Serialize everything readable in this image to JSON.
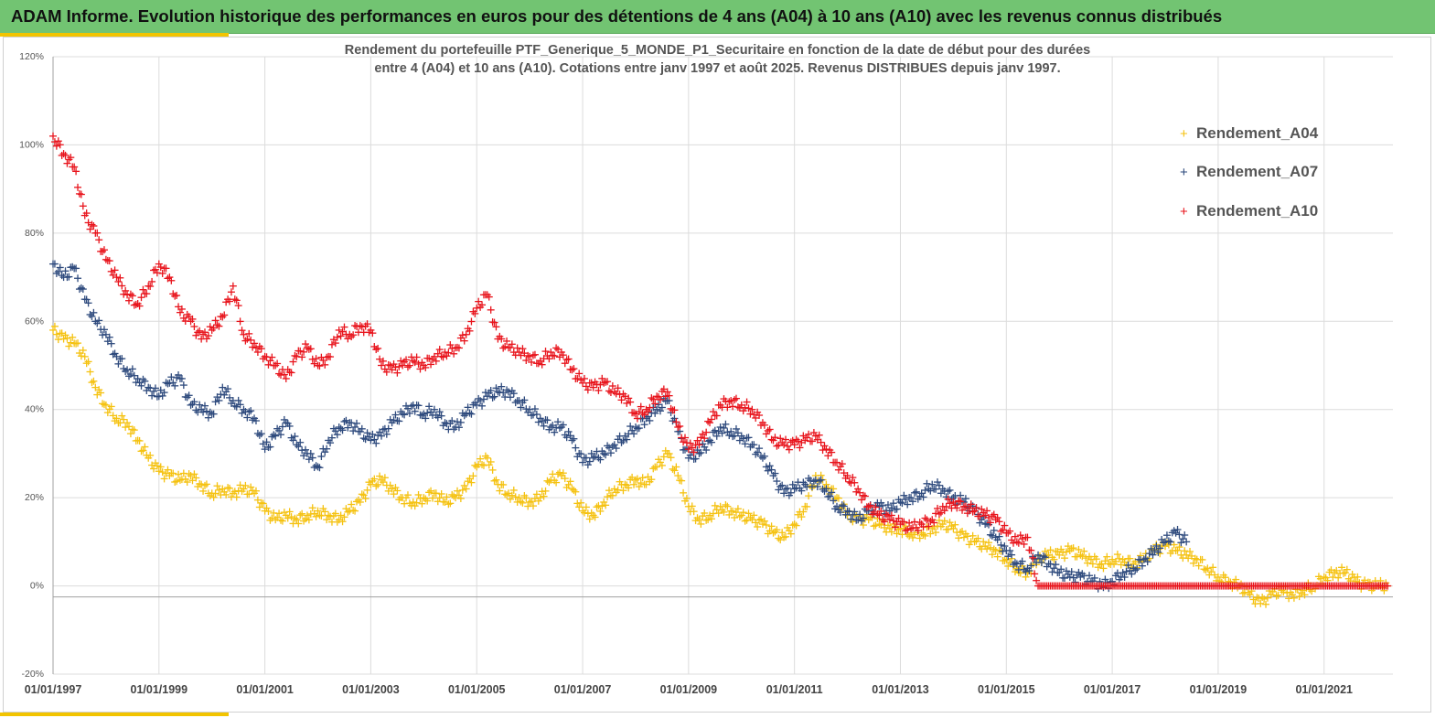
{
  "header": {
    "title": "ADAM Informe. Evolution historique des performances en euros pour des détentions de 4 ans (A04) à 10 ans (A10) avec les revenus connus distribués"
  },
  "colors": {
    "header_bg": "#72c472",
    "accent": "#f2c400"
  },
  "chart_data": {
    "type": "scatter",
    "title_line1": "Rendement du portefeuille PTF_Generique_5_MONDE_P1_Securitaire  en fonction de la date de début pour des durées",
    "title_line2": "entre 4 (A04) et 10 ans (A10). Cotations  entre janv 1997 et août 2025. Revenus DISTRIBUES depuis janv 1997.",
    "marker": "+",
    "grid": true,
    "legend_position": "top-right",
    "xlim": [
      1997.0,
      2022.3
    ],
    "ylim": [
      -0.2,
      1.2
    ],
    "x_ticks": [
      {
        "label": "01/01/1997",
        "value": 1997
      },
      {
        "label": "01/01/1999",
        "value": 1999
      },
      {
        "label": "01/01/2001",
        "value": 2001
      },
      {
        "label": "01/01/2003",
        "value": 2003
      },
      {
        "label": "01/01/2005",
        "value": 2005
      },
      {
        "label": "01/01/2007",
        "value": 2007
      },
      {
        "label": "01/01/2009",
        "value": 2009
      },
      {
        "label": "01/01/2011",
        "value": 2011
      },
      {
        "label": "01/01/2013",
        "value": 2013
      },
      {
        "label": "01/01/2015",
        "value": 2015
      },
      {
        "label": "01/01/2017",
        "value": 2017
      },
      {
        "label": "01/01/2019",
        "value": 2019
      },
      {
        "label": "01/01/2021",
        "value": 2021
      }
    ],
    "y_ticks": [
      {
        "label": "120%",
        "value": 1.2
      },
      {
        "label": "100%",
        "value": 1.0
      },
      {
        "label": "80%",
        "value": 0.8
      },
      {
        "label": "60%",
        "value": 0.6
      },
      {
        "label": "40%",
        "value": 0.4
      },
      {
        "label": "20%",
        "value": 0.2
      },
      {
        "label": "0%",
        "value": 0.0
      },
      {
        "label": "-20%",
        "value": -0.2
      }
    ],
    "series": [
      {
        "name": "Rendement_A04",
        "color": "#f5c211",
        "x": [
          1997.0,
          1997.2,
          1997.4,
          1997.6,
          1997.8,
          1998.0,
          1998.2,
          1998.4,
          1998.6,
          1998.8,
          1999.0,
          1999.2,
          1999.4,
          1999.6,
          1999.8,
          2000.0,
          2000.2,
          2000.4,
          2000.6,
          2000.8,
          2001.0,
          2001.2,
          2001.4,
          2001.6,
          2001.8,
          2002.0,
          2002.2,
          2002.4,
          2002.6,
          2002.8,
          2003.0,
          2003.2,
          2003.4,
          2003.6,
          2003.8,
          2004.0,
          2004.2,
          2004.4,
          2004.6,
          2004.8,
          2005.0,
          2005.2,
          2005.4,
          2005.6,
          2005.8,
          2006.0,
          2006.2,
          2006.4,
          2006.6,
          2006.8,
          2007.0,
          2007.2,
          2007.4,
          2007.6,
          2007.8,
          2008.0,
          2008.2,
          2008.4,
          2008.6,
          2008.8,
          2009.0,
          2009.2,
          2009.4,
          2009.6,
          2009.8,
          2010.0,
          2010.2,
          2010.4,
          2010.6,
          2010.8,
          2011.0,
          2011.2,
          2011.4,
          2011.6,
          2011.8,
          2012.0,
          2012.2,
          2012.4,
          2012.6,
          2012.8,
          2013.0,
          2013.2,
          2013.4,
          2013.6,
          2013.8,
          2014.0,
          2014.2,
          2014.4,
          2014.6,
          2014.8,
          2015.0,
          2015.2,
          2015.4,
          2015.6,
          2015.8,
          2016.0,
          2016.2,
          2016.4,
          2016.6,
          2016.8,
          2017.0,
          2017.2,
          2017.4,
          2017.6,
          2017.8,
          2018.0,
          2018.2,
          2018.4,
          2018.6,
          2018.8,
          2019.0,
          2019.2,
          2019.4,
          2019.6,
          2019.8,
          2020.0,
          2020.2,
          2020.4,
          2020.6,
          2020.8,
          2021.0,
          2021.2,
          2021.4,
          2021.6,
          2021.8,
          2022.0,
          2022.2
        ],
        "values": [
          0.58,
          0.56,
          0.55,
          0.52,
          0.45,
          0.41,
          0.38,
          0.37,
          0.33,
          0.29,
          0.26,
          0.25,
          0.24,
          0.25,
          0.23,
          0.21,
          0.22,
          0.21,
          0.22,
          0.21,
          0.17,
          0.15,
          0.16,
          0.15,
          0.16,
          0.17,
          0.16,
          0.15,
          0.17,
          0.19,
          0.23,
          0.24,
          0.22,
          0.2,
          0.19,
          0.2,
          0.21,
          0.19,
          0.2,
          0.22,
          0.27,
          0.29,
          0.23,
          0.21,
          0.2,
          0.19,
          0.2,
          0.24,
          0.25,
          0.22,
          0.17,
          0.16,
          0.19,
          0.22,
          0.23,
          0.24,
          0.23,
          0.27,
          0.3,
          0.25,
          0.18,
          0.15,
          0.16,
          0.18,
          0.17,
          0.16,
          0.15,
          0.14,
          0.12,
          0.11,
          0.14,
          0.18,
          0.25,
          0.23,
          0.2,
          0.16,
          0.15,
          0.15,
          0.14,
          0.13,
          0.13,
          0.12,
          0.12,
          0.13,
          0.14,
          0.13,
          0.11,
          0.1,
          0.09,
          0.08,
          0.06,
          0.04,
          0.03,
          0.06,
          0.07,
          0.07,
          0.08,
          0.07,
          0.06,
          0.05,
          0.06,
          0.06,
          0.05,
          0.06,
          0.08,
          0.09,
          0.08,
          0.07,
          0.06,
          0.04,
          0.02,
          0.01,
          0.0,
          -0.02,
          -0.04,
          -0.02,
          -0.01,
          -0.02,
          -0.01,
          0.0,
          0.02,
          0.03,
          0.03,
          0.01,
          0.0,
          0.0,
          0.0
        ]
      },
      {
        "name": "Rendement_A07",
        "color": "#2e4a7d",
        "x": [
          1997.0,
          1997.2,
          1997.4,
          1997.6,
          1997.8,
          1998.0,
          1998.2,
          1998.4,
          1998.6,
          1998.8,
          1999.0,
          1999.2,
          1999.4,
          1999.6,
          1999.8,
          2000.0,
          2000.2,
          2000.4,
          2000.6,
          2000.8,
          2001.0,
          2001.2,
          2001.4,
          2001.6,
          2001.8,
          2002.0,
          2002.2,
          2002.4,
          2002.6,
          2002.8,
          2003.0,
          2003.2,
          2003.4,
          2003.6,
          2003.8,
          2004.0,
          2004.2,
          2004.4,
          2004.6,
          2004.8,
          2005.0,
          2005.2,
          2005.4,
          2005.6,
          2005.8,
          2006.0,
          2006.2,
          2006.4,
          2006.6,
          2006.8,
          2007.0,
          2007.2,
          2007.4,
          2007.6,
          2007.8,
          2008.0,
          2008.2,
          2008.4,
          2008.6,
          2008.8,
          2009.0,
          2009.2,
          2009.4,
          2009.6,
          2009.8,
          2010.0,
          2010.2,
          2010.4,
          2010.6,
          2010.8,
          2011.0,
          2011.2,
          2011.4,
          2011.6,
          2011.8,
          2012.0,
          2012.2,
          2012.4,
          2012.6,
          2012.8,
          2013.0,
          2013.2,
          2013.4,
          2013.6,
          2013.8,
          2014.0,
          2014.2,
          2014.4,
          2014.6,
          2014.8,
          2015.0,
          2015.2,
          2015.4,
          2015.6,
          2015.8,
          2016.0,
          2016.2,
          2016.4,
          2016.6,
          2016.8,
          2017.0,
          2017.2,
          2017.4,
          2017.6,
          2017.8,
          2018.0,
          2018.2,
          2018.4
        ],
        "values": [
          0.73,
          0.7,
          0.72,
          0.65,
          0.6,
          0.57,
          0.52,
          0.49,
          0.47,
          0.45,
          0.43,
          0.46,
          0.47,
          0.41,
          0.4,
          0.39,
          0.45,
          0.42,
          0.4,
          0.38,
          0.31,
          0.34,
          0.37,
          0.32,
          0.3,
          0.27,
          0.33,
          0.36,
          0.37,
          0.35,
          0.33,
          0.34,
          0.37,
          0.39,
          0.41,
          0.39,
          0.4,
          0.37,
          0.36,
          0.39,
          0.41,
          0.43,
          0.44,
          0.44,
          0.42,
          0.4,
          0.38,
          0.36,
          0.36,
          0.33,
          0.28,
          0.29,
          0.3,
          0.32,
          0.34,
          0.36,
          0.38,
          0.4,
          0.42,
          0.35,
          0.29,
          0.3,
          0.33,
          0.36,
          0.35,
          0.34,
          0.32,
          0.29,
          0.25,
          0.21,
          0.22,
          0.23,
          0.24,
          0.22,
          0.18,
          0.17,
          0.15,
          0.17,
          0.18,
          0.17,
          0.19,
          0.2,
          0.21,
          0.23,
          0.22,
          0.2,
          0.19,
          0.17,
          0.14,
          0.11,
          0.08,
          0.05,
          0.04,
          0.07,
          0.05,
          0.03,
          0.02,
          0.02,
          0.01,
          0.0,
          0.01,
          0.03,
          0.04,
          0.06,
          0.08,
          0.1,
          0.12,
          0.1
        ]
      },
      {
        "name": "Rendement_A10",
        "color": "#e8141c",
        "x": [
          1997.0,
          1997.2,
          1997.4,
          1997.6,
          1997.8,
          1998.0,
          1998.2,
          1998.4,
          1998.6,
          1998.8,
          1999.0,
          1999.2,
          1999.4,
          1999.6,
          1999.8,
          2000.0,
          2000.2,
          2000.4,
          2000.6,
          2000.8,
          2001.0,
          2001.2,
          2001.4,
          2001.6,
          2001.8,
          2002.0,
          2002.2,
          2002.4,
          2002.6,
          2002.8,
          2003.0,
          2003.2,
          2003.4,
          2003.6,
          2003.8,
          2004.0,
          2004.2,
          2004.4,
          2004.6,
          2004.8,
          2005.0,
          2005.2,
          2005.4,
          2005.6,
          2005.8,
          2006.0,
          2006.2,
          2006.4,
          2006.6,
          2006.8,
          2007.0,
          2007.2,
          2007.4,
          2007.6,
          2007.8,
          2008.0,
          2008.2,
          2008.4,
          2008.6,
          2008.8,
          2009.0,
          2009.2,
          2009.4,
          2009.6,
          2009.8,
          2010.0,
          2010.2,
          2010.4,
          2010.6,
          2010.8,
          2011.0,
          2011.2,
          2011.4,
          2011.6,
          2011.8,
          2012.0,
          2012.2,
          2012.4,
          2012.6,
          2012.8,
          2013.0,
          2013.2,
          2013.4,
          2013.6,
          2013.8,
          2014.0,
          2014.2,
          2014.4,
          2014.6,
          2014.8,
          2015.0,
          2015.2,
          2015.4,
          2015.6,
          2015.8,
          2016.0,
          2016.2,
          2016.4,
          2016.6,
          2016.8,
          2017.0,
          2017.2,
          2017.4,
          2017.6,
          2017.8,
          2018.0,
          2018.2,
          2018.4,
          2018.6,
          2018.8,
          2019.0,
          2019.2,
          2019.4,
          2019.6,
          2019.8,
          2020.0,
          2020.2,
          2020.4,
          2020.6,
          2020.8,
          2021.0,
          2021.2,
          2021.4,
          2021.6,
          2021.8,
          2022.0,
          2022.2
        ],
        "values": [
          1.02,
          0.98,
          0.95,
          0.84,
          0.8,
          0.74,
          0.7,
          0.66,
          0.64,
          0.68,
          0.73,
          0.7,
          0.62,
          0.6,
          0.56,
          0.58,
          0.61,
          0.68,
          0.57,
          0.55,
          0.52,
          0.5,
          0.47,
          0.52,
          0.54,
          0.5,
          0.52,
          0.58,
          0.57,
          0.59,
          0.58,
          0.5,
          0.49,
          0.5,
          0.51,
          0.5,
          0.52,
          0.53,
          0.54,
          0.57,
          0.63,
          0.66,
          0.56,
          0.54,
          0.53,
          0.52,
          0.51,
          0.53,
          0.53,
          0.49,
          0.46,
          0.45,
          0.46,
          0.44,
          0.43,
          0.39,
          0.4,
          0.43,
          0.44,
          0.36,
          0.31,
          0.32,
          0.37,
          0.41,
          0.42,
          0.41,
          0.4,
          0.37,
          0.33,
          0.32,
          0.32,
          0.33,
          0.34,
          0.31,
          0.28,
          0.25,
          0.22,
          0.18,
          0.16,
          0.15,
          0.14,
          0.13,
          0.14,
          0.15,
          0.18,
          0.19,
          0.18,
          0.17,
          0.16,
          0.15,
          0.12,
          0.1,
          0.11,
          0.0,
          0.0,
          0.0,
          0.0,
          0.0,
          0.0,
          0.0,
          0.0,
          0.0,
          0.0,
          0.0,
          0.0,
          0.0,
          0.0,
          0.0,
          0.0,
          0.0,
          0.0,
          0.0,
          0.0,
          0.0,
          0.0,
          0.0,
          0.0,
          0.0,
          0.0,
          0.0,
          0.0,
          0.0,
          0.0,
          0.0,
          0.0,
          0.0,
          0.0
        ]
      }
    ]
  }
}
